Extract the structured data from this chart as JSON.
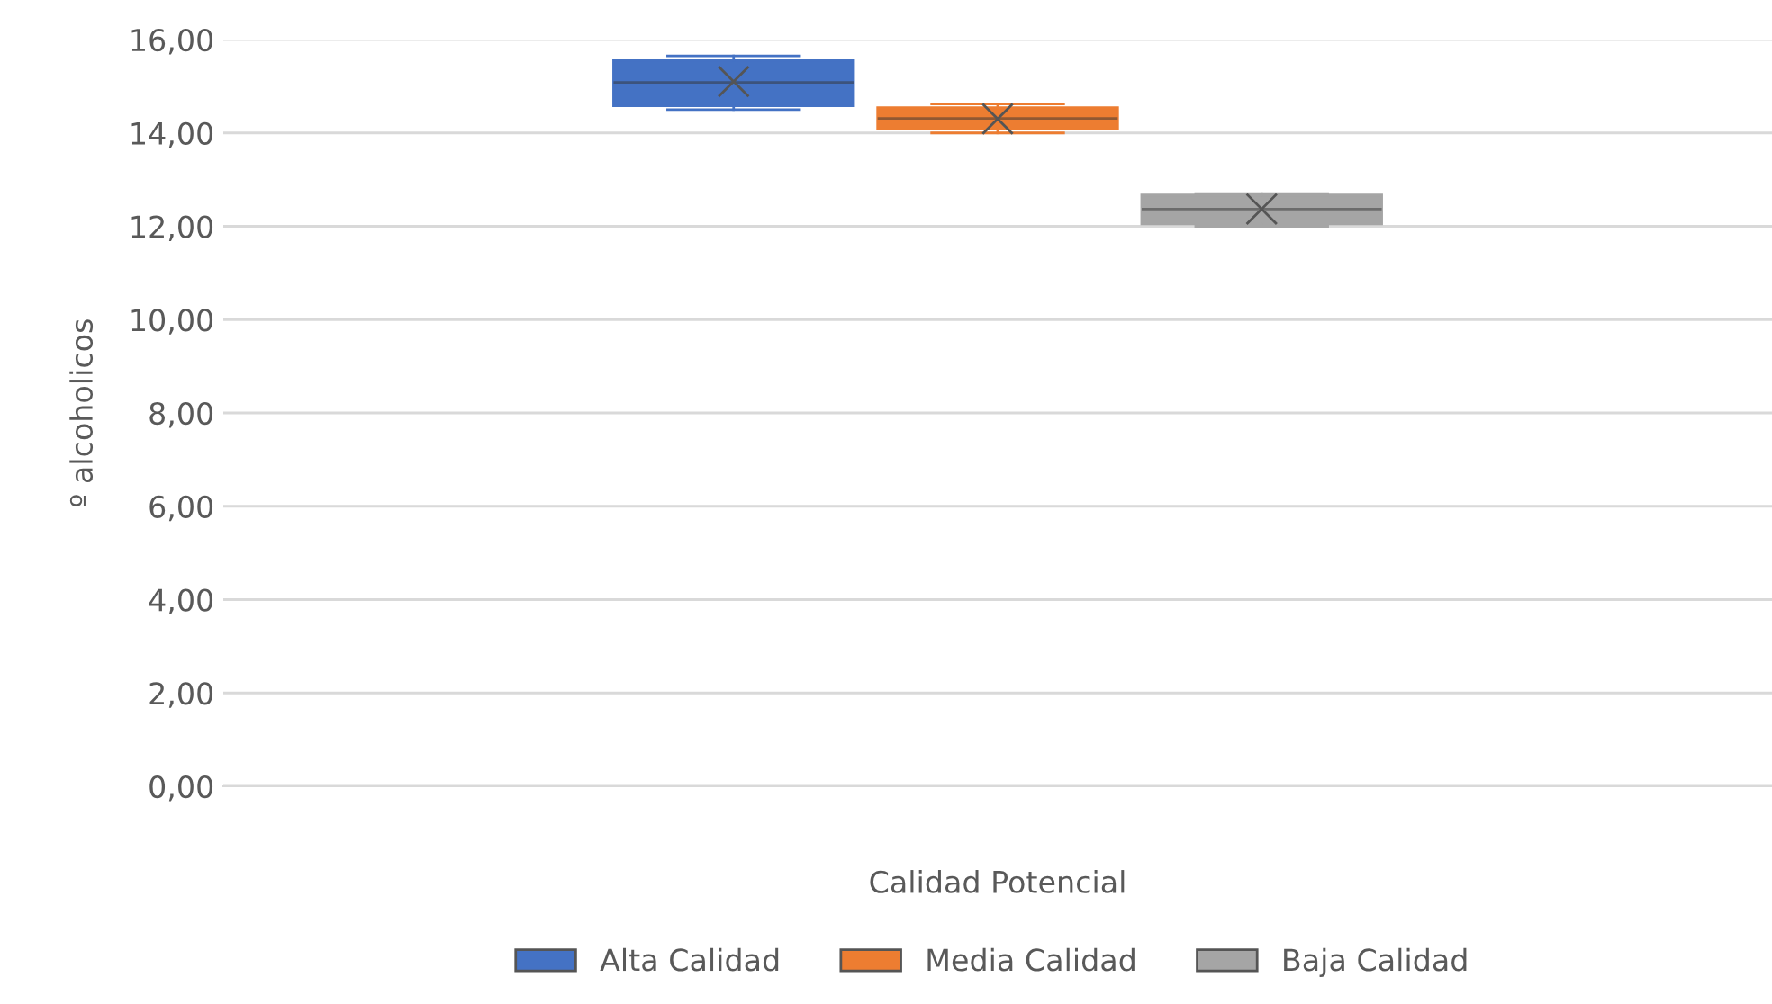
{
  "chart_data": {
    "type": "box",
    "xlabel": "Calidad Potencial",
    "ylabel": "º alcoholicos",
    "categories": [
      null
    ],
    "ylim": [
      0,
      16
    ],
    "yticks": [
      {
        "value": 0,
        "label": "0,00"
      },
      {
        "value": 2,
        "label": "2,00"
      },
      {
        "value": 4,
        "label": "4,00"
      },
      {
        "value": 6,
        "label": "6,00"
      },
      {
        "value": 8,
        "label": "8,00"
      },
      {
        "value": 10,
        "label": "10,00"
      },
      {
        "value": 12,
        "label": "12,00"
      },
      {
        "value": 14,
        "label": "14,00"
      },
      {
        "value": 16,
        "label": "16,00"
      }
    ],
    "grid": "y",
    "legend": "bottom",
    "series": [
      {
        "name": "Alta Calidad",
        "color": "#4472c4",
        "boxes": [
          {
            "low": 14.5,
            "q1": 14.58,
            "median": 15.08,
            "q3": 15.55,
            "high": 15.65,
            "mean": 15.1
          }
        ]
      },
      {
        "name": "Media Calidad",
        "color": "#ed7d31",
        "boxes": [
          {
            "low": 14.0,
            "q1": 14.08,
            "median": 14.31,
            "q3": 14.54,
            "high": 14.62,
            "mean": 14.3
          }
        ]
      },
      {
        "name": "Baja Calidad",
        "color": "#a5a5a5",
        "boxes": [
          {
            "low": 12.0,
            "q1": 12.05,
            "median": 12.37,
            "q3": 12.67,
            "high": 12.7,
            "mean": 12.37
          }
        ]
      }
    ]
  }
}
